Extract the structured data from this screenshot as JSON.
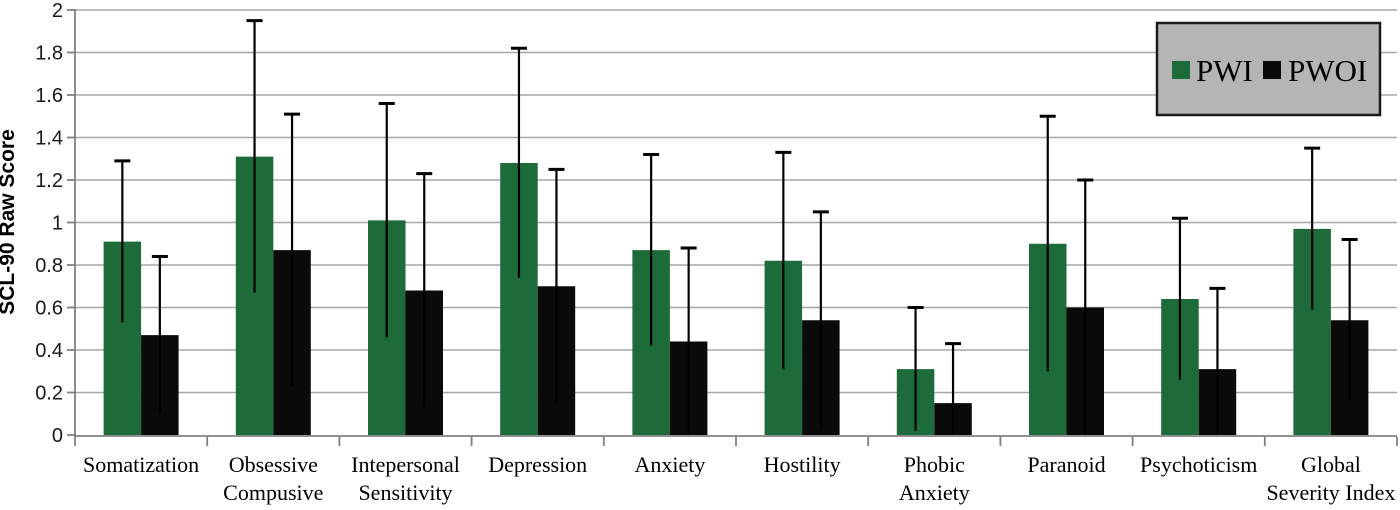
{
  "chart_data": {
    "type": "bar",
    "title": "",
    "xlabel": "",
    "ylabel": "SCL-90 Raw Score",
    "ylim": [
      0,
      2
    ],
    "ytick_step": 0.2,
    "ytick_labels": [
      "0",
      "0.2",
      "0.4",
      "0.6",
      "0.8",
      "1",
      "1.2",
      "1.4",
      "1.6",
      "1.8",
      "2"
    ],
    "grid": true,
    "legend_position": "top-right",
    "error_bars": "symmetric, top cap visible",
    "categories": [
      "Somatization",
      "Obsessive Compusive",
      "Intepersonal Sensitivity",
      "Depression",
      "Anxiety",
      "Hostility",
      "Phobic Anxiety",
      "Paranoid",
      "Psychoticism",
      "Global Severity Index"
    ],
    "category_label_lines": [
      [
        "Somatization"
      ],
      [
        "Obsessive",
        "Compusive"
      ],
      [
        "Intepersonal",
        "Sensitivity"
      ],
      [
        "Depression"
      ],
      [
        "Anxiety"
      ],
      [
        "Hostility"
      ],
      [
        "Phobic",
        "Anxiety"
      ],
      [
        "Paranoid"
      ],
      [
        "Psychoticism"
      ],
      [
        "Global",
        "Severity Index"
      ]
    ],
    "series": [
      {
        "name": "PWI",
        "color": "#1c6b39",
        "values": [
          0.91,
          1.31,
          1.01,
          1.28,
          0.87,
          0.82,
          0.31,
          0.9,
          0.64,
          0.97
        ],
        "errors": [
          0.38,
          0.64,
          0.55,
          0.54,
          0.45,
          0.51,
          0.29,
          0.6,
          0.38,
          0.38
        ]
      },
      {
        "name": "PWOI",
        "color": "#0a0a0a",
        "values": [
          0.47,
          0.87,
          0.68,
          0.7,
          0.44,
          0.54,
          0.15,
          0.6,
          0.31,
          0.54
        ],
        "errors": [
          0.37,
          0.64,
          0.55,
          0.55,
          0.44,
          0.51,
          0.28,
          0.6,
          0.38,
          0.38
        ]
      }
    ],
    "colors": {
      "background": "#ffffff",
      "gridline": "#a6a6a6",
      "axis": "#808080",
      "error_bar": "#000000",
      "legend_fill": "#b5b5b5",
      "legend_border": "#1a1a1a",
      "text": "#000000"
    }
  }
}
